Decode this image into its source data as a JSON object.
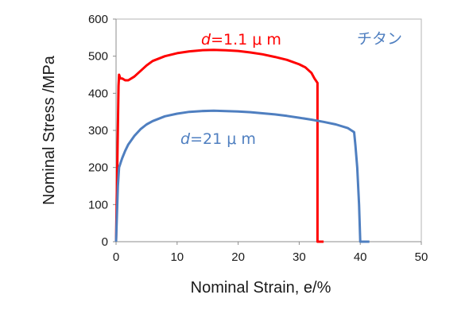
{
  "chart_data": {
    "type": "line",
    "xlabel": "Nominal Strain, e/%",
    "ylabel": "Nominal Stress /MPa",
    "xlim": [
      0,
      50
    ],
    "ylim": [
      0,
      600
    ],
    "x_ticks": [
      0,
      10,
      20,
      30,
      40,
      50
    ],
    "y_ticks": [
      0,
      100,
      200,
      300,
      400,
      500,
      600
    ],
    "grid": false,
    "legend_title": "チタン",
    "series": [
      {
        "label_var": "d",
        "label_rest": "=1.1 μ m",
        "color": "#ff0000",
        "points": [
          [
            0,
            0
          ],
          [
            0.2,
            200
          ],
          [
            0.4,
            420
          ],
          [
            0.5,
            450
          ],
          [
            0.7,
            440
          ],
          [
            1.0,
            440
          ],
          [
            1.5,
            435
          ],
          [
            2.0,
            435
          ],
          [
            3.0,
            445
          ],
          [
            4.0,
            460
          ],
          [
            5.0,
            475
          ],
          [
            6.0,
            487
          ],
          [
            8.0,
            500
          ],
          [
            10.0,
            508
          ],
          [
            12.0,
            513
          ],
          [
            14.0,
            516
          ],
          [
            16.0,
            517
          ],
          [
            18.0,
            516
          ],
          [
            20.0,
            514
          ],
          [
            22.0,
            510
          ],
          [
            24.0,
            505
          ],
          [
            26.0,
            498
          ],
          [
            28.0,
            490
          ],
          [
            30.0,
            478
          ],
          [
            31.0,
            470
          ],
          [
            32.0,
            455
          ],
          [
            32.5,
            440
          ],
          [
            33.0,
            428
          ],
          [
            33.0,
            0
          ],
          [
            34.0,
            0
          ]
        ]
      },
      {
        "label_var": "d",
        "label_rest": "=21 μ m",
        "color": "#4f7fc0",
        "points": [
          [
            0,
            0
          ],
          [
            0.3,
            150
          ],
          [
            0.5,
            200
          ],
          [
            0.8,
            215
          ],
          [
            1.0,
            225
          ],
          [
            1.5,
            245
          ],
          [
            2.0,
            262
          ],
          [
            3.0,
            285
          ],
          [
            4.0,
            303
          ],
          [
            5.0,
            316
          ],
          [
            6.0,
            325
          ],
          [
            8.0,
            338
          ],
          [
            10.0,
            345
          ],
          [
            12.0,
            350
          ],
          [
            14.0,
            352
          ],
          [
            16.0,
            353
          ],
          [
            18.0,
            352
          ],
          [
            20.0,
            351
          ],
          [
            22.0,
            349
          ],
          [
            24.0,
            346
          ],
          [
            26.0,
            343
          ],
          [
            28.0,
            339
          ],
          [
            30.0,
            334
          ],
          [
            32.0,
            329
          ],
          [
            34.0,
            323
          ],
          [
            36.0,
            316
          ],
          [
            38.0,
            306
          ],
          [
            39.0,
            295
          ],
          [
            39.2,
            260
          ],
          [
            39.5,
            200
          ],
          [
            39.8,
            100
          ],
          [
            40.0,
            0
          ],
          [
            41.5,
            0
          ]
        ]
      }
    ]
  }
}
